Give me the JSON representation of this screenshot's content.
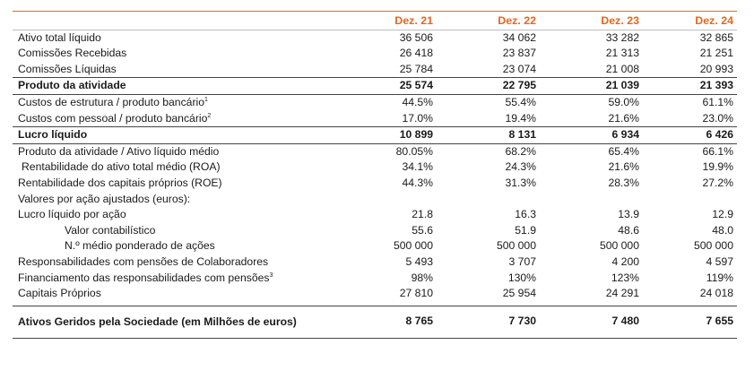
{
  "columns": [
    "Dez. 21",
    "Dez. 22",
    "Dez. 23",
    "Dez. 24"
  ],
  "rows": [
    {
      "label": "Ativo total líquido",
      "sup": "",
      "values": [
        "36 506",
        "34 062",
        "33 282",
        "32 865"
      ],
      "style": ""
    },
    {
      "label": "Comissões Recebidas",
      "sup": "",
      "values": [
        "26 418",
        "23 837",
        "21 313",
        "21 251"
      ],
      "style": ""
    },
    {
      "label": "Comissões Líquidas",
      "sup": "",
      "values": [
        "25 784",
        "23 074",
        "21 008",
        "20 993"
      ],
      "style": ""
    },
    {
      "label": "Produto da atividade",
      "sup": "",
      "values": [
        "25 574",
        "22 795",
        "21 039",
        "21 393"
      ],
      "style": "bold"
    },
    {
      "label": "Custos de estrutura / produto bancário",
      "sup": "1",
      "values": [
        "44.5%",
        "55.4%",
        "59.0%",
        "61.1%"
      ],
      "style": ""
    },
    {
      "label": "Custos com pessoal / produto bancário",
      "sup": "2",
      "values": [
        "17.0%",
        "19.4%",
        "21.6%",
        "23.0%"
      ],
      "style": ""
    },
    {
      "label": "Lucro líquido",
      "sup": "",
      "values": [
        "10 899",
        "8 131",
        "6 934",
        "6 426"
      ],
      "style": "bold"
    },
    {
      "label": "Produto da atividade / Ativo líquido médio",
      "sup": "",
      "values": [
        "80.05%",
        "68.2%",
        "65.4%",
        "66.1%"
      ],
      "style": ""
    },
    {
      "label": "Rentabilidade do ativo total médio (ROA)",
      "sup": "",
      "values": [
        "34.1%",
        "24.3%",
        "21.6%",
        "19.9%"
      ],
      "style": "indent1"
    },
    {
      "label": "Rentabilidade dos capitais próprios (ROE)",
      "sup": "",
      "values": [
        "44.3%",
        "31.3%",
        "28.3%",
        "27.2%"
      ],
      "style": ""
    },
    {
      "label": "Valores por ação ajustados (euros):",
      "sup": "",
      "values": [
        "",
        "",
        "",
        ""
      ],
      "style": ""
    },
    {
      "label": "Lucro líquido por ação",
      "sup": "",
      "values": [
        "21.8",
        "16.3",
        "13.9",
        "12.9"
      ],
      "style": ""
    },
    {
      "label": "Valor contabilístico",
      "sup": "",
      "values": [
        "55.6",
        "51.9",
        "48.6",
        "48.0"
      ],
      "style": "indent2"
    },
    {
      "label": "N.º médio ponderado de ações",
      "sup": "",
      "values": [
        "500 000",
        "500 000",
        "500 000",
        "500 000"
      ],
      "style": "indent2"
    },
    {
      "label": "Responsabilidades com pensões de Colaboradores",
      "sup": "",
      "values": [
        "5 493",
        "3 707",
        "4 200",
        "4 597"
      ],
      "style": ""
    },
    {
      "label": "Financiamento das responsabilidades com pensões",
      "sup": "3",
      "values": [
        "98%",
        "130%",
        "123%",
        "119%"
      ],
      "style": ""
    },
    {
      "label": "Capitais Próprios",
      "sup": "",
      "values": [
        "27 810",
        "25 954",
        "24 291",
        "24 018"
      ],
      "style": ""
    }
  ],
  "last_row": {
    "label": "Ativos Geridos pela Sociedade (em Milhões de euros)",
    "values": [
      "8 765",
      "7 730",
      "7 480",
      "7 655"
    ]
  }
}
